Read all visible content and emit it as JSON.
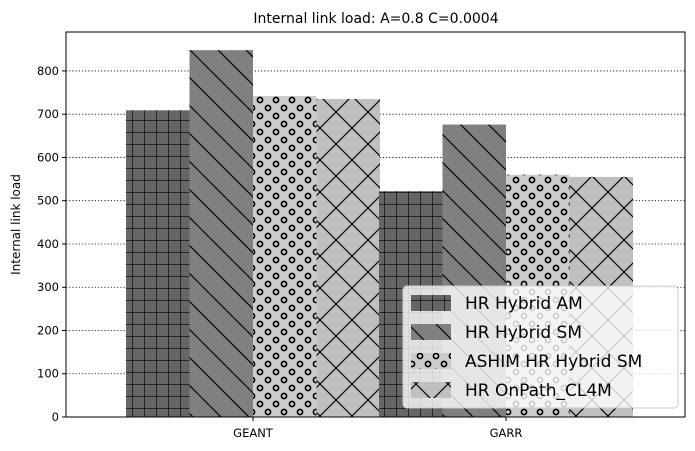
{
  "chart_data": {
    "type": "bar",
    "title": "Internal link load: A=0.8 C=0.0004",
    "xlabel": "",
    "ylabel": "Internal link load",
    "categories": [
      "GEANT",
      "GARR"
    ],
    "ylim": [
      0,
      890
    ],
    "yticks": [
      0,
      100,
      200,
      300,
      400,
      500,
      600,
      700,
      800
    ],
    "ytick_labels": [
      "0",
      "100",
      "200",
      "300",
      "400",
      "500",
      "600",
      "700",
      "800"
    ],
    "grid": "y-dotted",
    "legend_position": "lower-right",
    "series": [
      {
        "name": "HR Hybrid AM",
        "values": [
          709,
          522
        ],
        "color": "#666666",
        "hatch": "grid"
      },
      {
        "name": "HR Hybrid SM",
        "values": [
          848,
          676
        ],
        "color": "#808080",
        "hatch": "diagonal"
      },
      {
        "name": "ASHIM HR Hybrid SM",
        "values": [
          742,
          560
        ],
        "color": "#cccccc",
        "hatch": "circles"
      },
      {
        "name": "HR OnPath_CL4M",
        "values": [
          735,
          555
        ],
        "color": "#bfbfbf",
        "hatch": "crosshatch"
      }
    ]
  }
}
